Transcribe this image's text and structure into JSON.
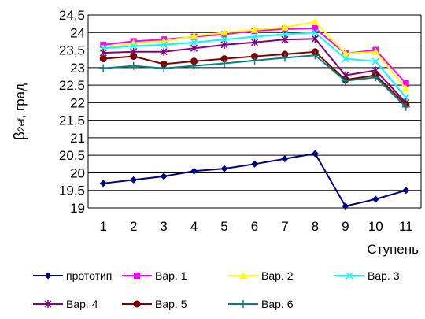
{
  "chart_data": {
    "type": "line",
    "xlabel": "Ступень",
    "ylabel": "β2ef, град",
    "ylabel_main": "β",
    "ylabel_sub": "2ef",
    "ylabel_rest": ", град",
    "ylim": [
      19,
      24.5
    ],
    "ytick_step": 0.5,
    "yticks": [
      "19",
      "19,5",
      "20",
      "20,5",
      "21",
      "21,5",
      "22",
      "22,5",
      "23",
      "23,5",
      "24",
      "24,5"
    ],
    "categories": [
      "1",
      "2",
      "3",
      "4",
      "5",
      "6",
      "7",
      "8",
      "9",
      "10",
      "11"
    ],
    "grid": "horizontal",
    "legend_position": "bottom",
    "series": [
      {
        "name": "прототип",
        "color": "#000080",
        "marker": "diamond",
        "values": [
          19.7,
          19.8,
          19.9,
          20.05,
          20.12,
          20.25,
          20.4,
          20.55,
          19.05,
          19.25,
          19.5
        ]
      },
      {
        "name": "Вар. 1",
        "color": "#ff00ff",
        "marker": "square",
        "values": [
          23.65,
          23.75,
          23.8,
          23.88,
          23.95,
          24.05,
          24.1,
          24.12,
          23.4,
          23.5,
          22.55
        ]
      },
      {
        "name": "Вар. 2",
        "color": "#ffff00",
        "marker": "triangle",
        "values": [
          23.55,
          23.7,
          23.75,
          23.9,
          24.0,
          24.08,
          24.15,
          24.3,
          23.4,
          23.45,
          22.4
        ]
      },
      {
        "name": "Вар. 3",
        "color": "#00ffff",
        "marker": "x",
        "values": [
          23.55,
          23.62,
          23.65,
          23.72,
          23.8,
          23.88,
          23.95,
          24.0,
          23.25,
          23.18,
          22.15
        ]
      },
      {
        "name": "Вар. 4",
        "color": "#800080",
        "marker": "star",
        "values": [
          23.42,
          23.45,
          23.45,
          23.55,
          23.65,
          23.72,
          23.8,
          23.82,
          22.78,
          22.92,
          22.0
        ]
      },
      {
        "name": "Вар. 5",
        "color": "#800000",
        "marker": "circle",
        "values": [
          23.25,
          23.32,
          23.1,
          23.18,
          23.25,
          23.32,
          23.38,
          23.45,
          22.65,
          22.78,
          21.95
        ]
      },
      {
        "name": "Вар. 6",
        "color": "#008080",
        "marker": "plus",
        "values": [
          22.98,
          23.05,
          22.98,
          23.05,
          23.12,
          23.2,
          23.28,
          23.35,
          22.62,
          22.72,
          21.88
        ]
      }
    ]
  }
}
